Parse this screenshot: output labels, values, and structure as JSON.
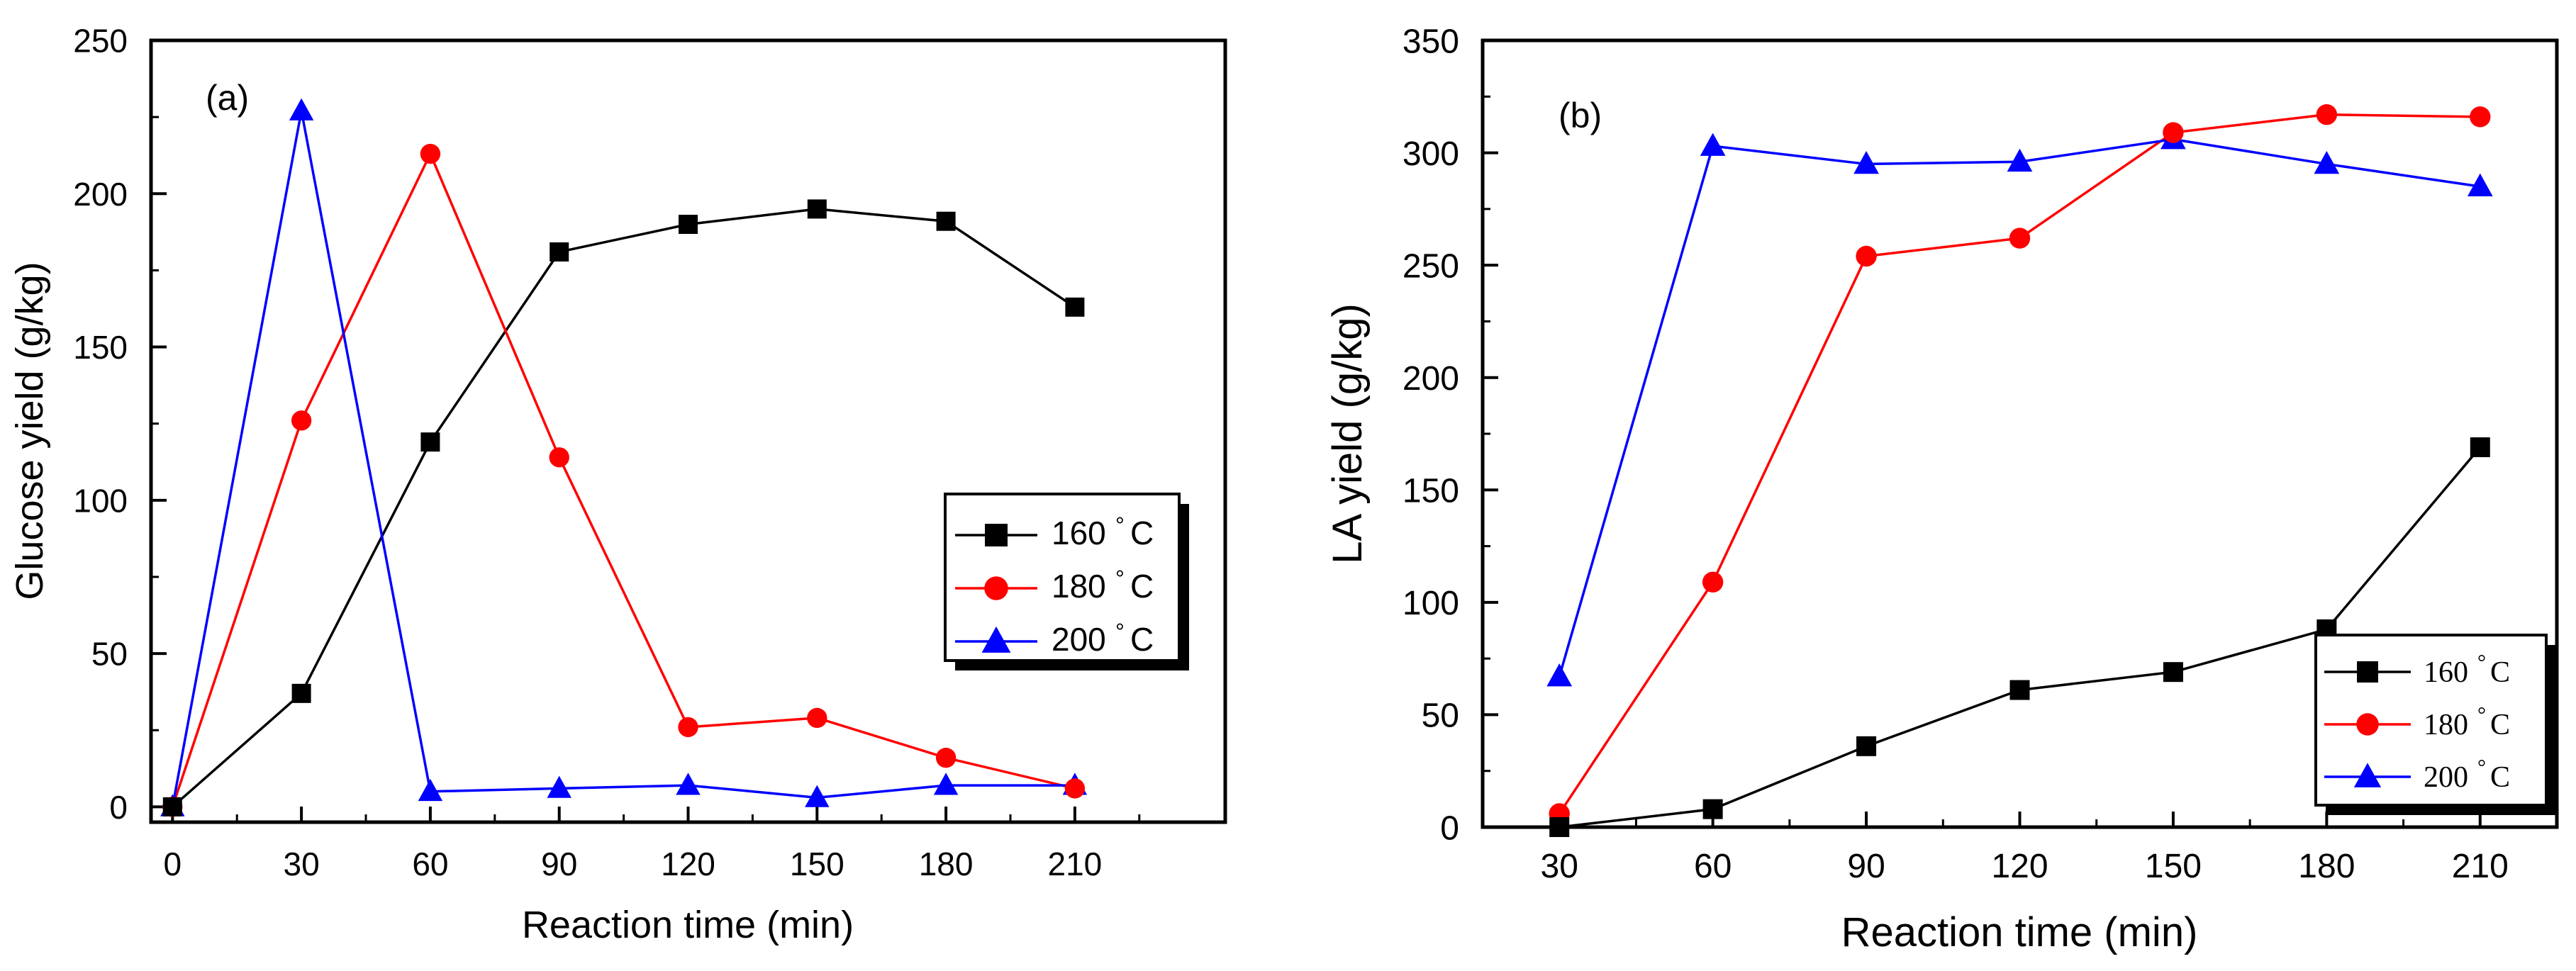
{
  "chart_data": [
    {
      "type": "line",
      "panel_label": "(a)",
      "xlabel": "Reaction time (min)",
      "ylabel": "Glucose yield (g/kg)",
      "x": [
        0,
        30,
        60,
        90,
        120,
        150,
        180,
        210
      ],
      "xticks": [
        0,
        30,
        60,
        90,
        120,
        150,
        180,
        210
      ],
      "xlim": [
        -5,
        245
      ],
      "yticks": [
        0,
        50,
        100,
        150,
        200,
        250
      ],
      "ylim": [
        -5,
        250
      ],
      "legend_position": "center-right",
      "legend_marker_caption": "°",
      "series": [
        {
          "name": "160 °C",
          "label_num": "160",
          "label_unit": "C",
          "color": "#000000",
          "marker": "square",
          "values": [
            0,
            37,
            119,
            181,
            190,
            195,
            191,
            163
          ]
        },
        {
          "name": "180 °C",
          "label_num": "180",
          "label_unit": "C",
          "color": "#ff0000",
          "marker": "circle",
          "values": [
            0,
            126,
            213,
            114,
            26,
            29,
            16,
            6
          ]
        },
        {
          "name": "200 °C",
          "label_num": "200",
          "label_unit": "C",
          "color": "#0000ff",
          "marker": "triangle",
          "values": [
            0,
            227,
            5,
            6,
            7,
            3,
            7,
            7
          ]
        }
      ]
    },
    {
      "type": "line",
      "panel_label": "(b)",
      "xlabel": "Reaction time (min)",
      "ylabel": "LA yield (g/kg)",
      "x": [
        30,
        60,
        90,
        120,
        150,
        180,
        210
      ],
      "xticks": [
        30,
        60,
        90,
        120,
        150,
        180,
        210
      ],
      "xlim": [
        15,
        225
      ],
      "yticks": [
        0,
        50,
        100,
        150,
        200,
        250,
        300,
        350
      ],
      "ylim": [
        0,
        350
      ],
      "legend_position": "bottom-right",
      "legend_marker_caption": "°",
      "series": [
        {
          "name": "160 °C",
          "label_num": "160",
          "label_unit": "C",
          "color": "#000000",
          "marker": "square",
          "values": [
            0,
            8,
            36,
            61,
            69,
            88,
            169
          ]
        },
        {
          "name": "180 °C",
          "label_num": "180",
          "label_unit": "C",
          "color": "#ff0000",
          "marker": "circle",
          "values": [
            6,
            109,
            254,
            262,
            309,
            317,
            316
          ]
        },
        {
          "name": "200 °C",
          "label_num": "200",
          "label_unit": "C",
          "color": "#0000ff",
          "marker": "triangle",
          "values": [
            67,
            303,
            295,
            296,
            306,
            295,
            285
          ]
        }
      ]
    }
  ]
}
